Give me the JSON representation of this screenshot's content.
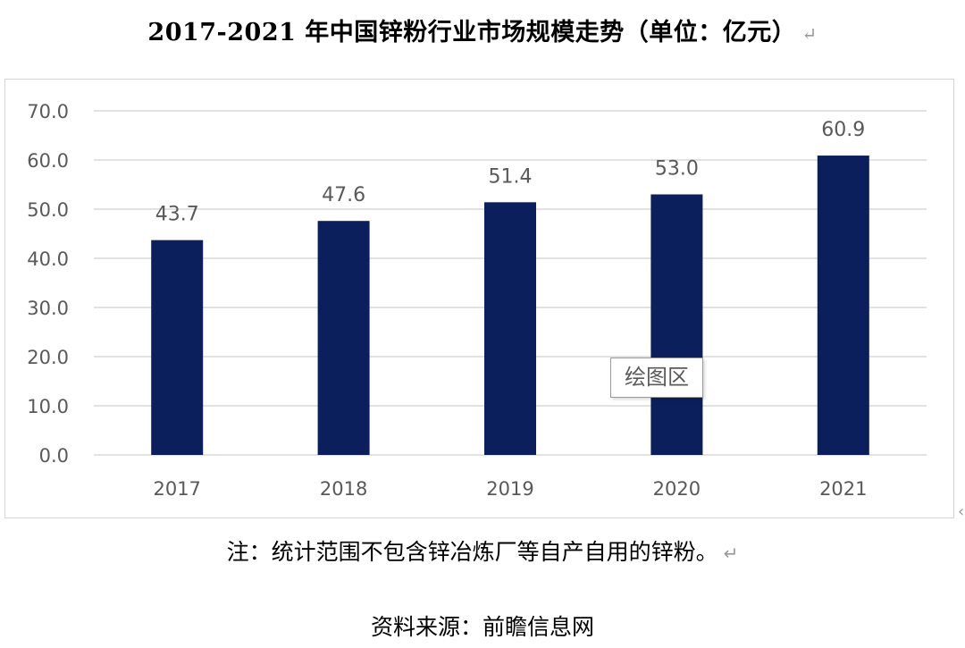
{
  "title": "2017-2021 年中国锌粉行业市场规模走势（单位：亿元）",
  "return_mark": "↵",
  "tooltip": "绘图区",
  "note": "注：统计范围不包含锌冶炼厂等自产自用的锌粉。",
  "source": "资料来源：前瞻信息网",
  "colors": {
    "bar": "#0b1f5c",
    "grid": "#d9d9d9",
    "axis_text": "#595959"
  },
  "chart_data": {
    "type": "bar",
    "title": "2017-2021 年中国锌粉行业市场规模走势（单位：亿元）",
    "categories": [
      "2017",
      "2018",
      "2019",
      "2020",
      "2021"
    ],
    "values": [
      43.7,
      47.6,
      51.4,
      53.0,
      60.9
    ],
    "data_labels": [
      "43.7",
      "47.6",
      "51.4",
      "53.0",
      "60.9"
    ],
    "y_ticks": [
      "0.0",
      "10.0",
      "20.0",
      "30.0",
      "40.0",
      "50.0",
      "60.0",
      "70.0"
    ],
    "ylim": [
      0,
      70
    ],
    "grid": true,
    "xlabel": "",
    "ylabel": ""
  }
}
